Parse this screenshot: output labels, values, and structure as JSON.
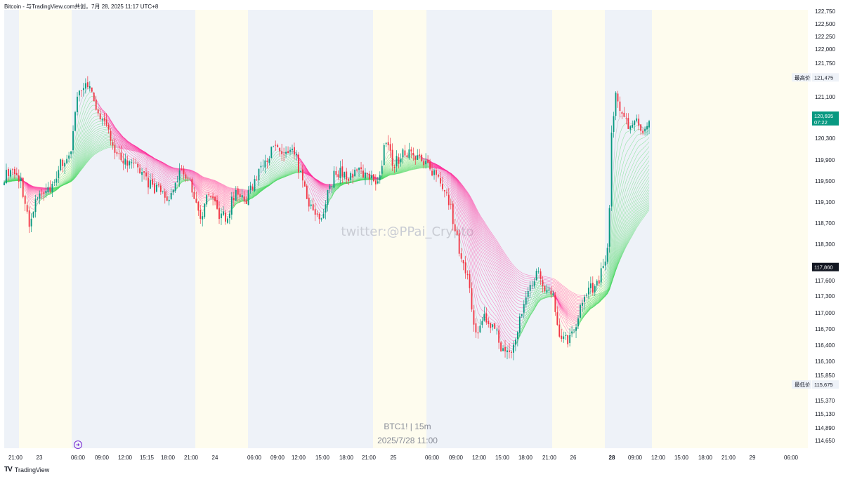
{
  "header": {
    "title": "Bitcoin - 与TradingView.com共创，7月 28, 2025 11:17 UTC+8"
  },
  "footer": {
    "logo_text": "TradingView"
  },
  "watermark": "twitter:@PPai_Crypto",
  "bottom_label": {
    "symbol": "BTC1! | 15m",
    "date": "2025/7/28 11:00"
  },
  "price_tags": {
    "high_label": "最高价",
    "high_value": "121,475",
    "low_label": "最低价",
    "low_value": "115,675",
    "current_value": "120,695",
    "countdown": "07:22",
    "crosshair_value": "117,860"
  },
  "colors": {
    "up": "#089981",
    "down": "#f23645",
    "ribbon_bull": "#4cd964",
    "ribbon_bear": "#ff2d9a",
    "ribbon_neutral": "#9aa0a6",
    "session_a": "#eef2f8",
    "session_b": "#fefcee"
  },
  "chart_data": {
    "type": "candlestick",
    "symbol": "BTC1!",
    "interval": "15m",
    "y_ticks": [
      "122,750",
      "122,500",
      "122,250",
      "122,000",
      "121,750",
      "121,100",
      "120,300",
      "119,900",
      "119,500",
      "119,100",
      "118,700",
      "118,300",
      "117,600",
      "117,300",
      "117,000",
      "116,700",
      "116,400",
      "116,100",
      "115,850",
      "115,370",
      "115,130",
      "114,890",
      "114,650"
    ],
    "x_ticks": [
      "21:00",
      "23",
      "06:00",
      "09:00",
      "12:00",
      "15:15",
      "18:00",
      "21:00",
      "24",
      "06:00",
      "09:00",
      "12:00",
      "15:00",
      "18:00",
      "21:00",
      "25",
      "06:00",
      "09:00",
      "12:00",
      "15:00",
      "18:00",
      "21:00",
      "26",
      "28",
      "09:00",
      "12:00",
      "15:00",
      "18:00",
      "21:00",
      "29",
      "06:00"
    ],
    "bold_x_tick": "28",
    "close_path": [
      [
        0,
        119500
      ],
      [
        15,
        119700
      ],
      [
        30,
        119500
      ],
      [
        42,
        118600
      ],
      [
        55,
        119300
      ],
      [
        70,
        119300
      ],
      [
        85,
        119800
      ],
      [
        100,
        120000
      ],
      [
        110,
        121100
      ],
      [
        122,
        121400
      ],
      [
        135,
        121000
      ],
      [
        150,
        120500
      ],
      [
        165,
        120100
      ],
      [
        180,
        119800
      ],
      [
        200,
        119700
      ],
      [
        215,
        119400
      ],
      [
        230,
        119300
      ],
      [
        240,
        119100
      ],
      [
        250,
        119500
      ],
      [
        262,
        119700
      ],
      [
        275,
        119300
      ],
      [
        285,
        118800
      ],
      [
        297,
        119300
      ],
      [
        310,
        118900
      ],
      [
        322,
        118800
      ],
      [
        335,
        119300
      ],
      [
        350,
        119100
      ],
      [
        362,
        119500
      ],
      [
        375,
        119900
      ],
      [
        390,
        120100
      ],
      [
        405,
        120000
      ],
      [
        420,
        120000
      ],
      [
        432,
        119400
      ],
      [
        445,
        118900
      ],
      [
        458,
        118800
      ],
      [
        465,
        119200
      ],
      [
        478,
        119700
      ],
      [
        495,
        119600
      ],
      [
        510,
        119700
      ],
      [
        525,
        119600
      ],
      [
        540,
        119500
      ],
      [
        548,
        120300
      ],
      [
        560,
        119800
      ],
      [
        572,
        120000
      ],
      [
        585,
        120100
      ],
      [
        598,
        119900
      ],
      [
        612,
        119700
      ],
      [
        625,
        119600
      ],
      [
        640,
        119100
      ],
      [
        652,
        118300
      ],
      [
        665,
        117700
      ],
      [
        678,
        116500
      ],
      [
        690,
        116900
      ],
      [
        705,
        116700
      ],
      [
        718,
        116200
      ],
      [
        730,
        116300
      ],
      [
        742,
        117000
      ],
      [
        755,
        117500
      ],
      [
        765,
        117800
      ],
      [
        775,
        117500
      ],
      [
        787,
        117300
      ],
      [
        798,
        116500
      ],
      [
        810,
        116500
      ],
      [
        822,
        116900
      ],
      [
        835,
        117400
      ],
      [
        848,
        117500
      ],
      [
        858,
        117800
      ],
      [
        866,
        118300
      ],
      [
        870,
        120300
      ],
      [
        876,
        121100
      ],
      [
        885,
        120800
      ],
      [
        895,
        120500
      ],
      [
        905,
        120700
      ],
      [
        915,
        120300
      ],
      [
        927,
        120700
      ]
    ],
    "bars": 310
  }
}
